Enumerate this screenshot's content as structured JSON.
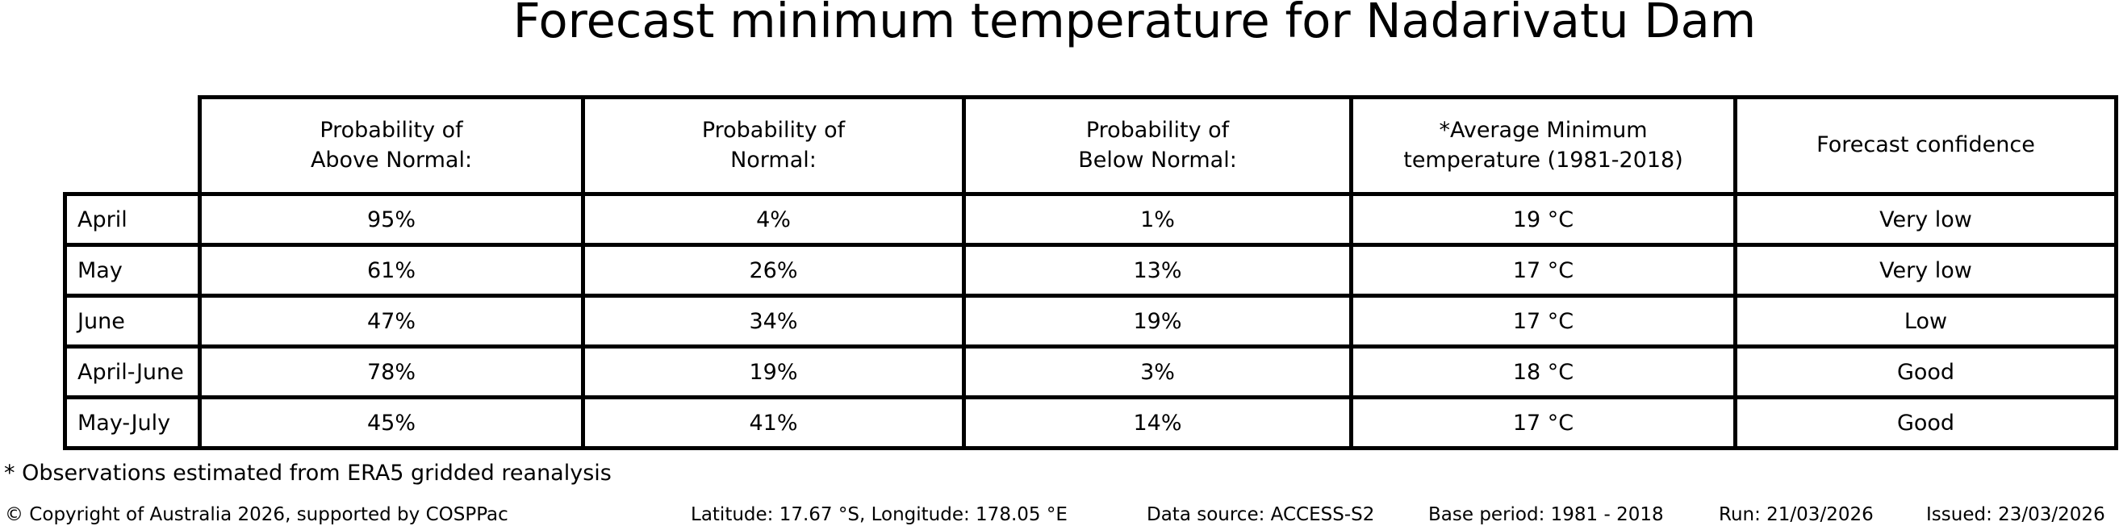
{
  "title": "Forecast minimum temperature for Nadarivatu Dam",
  "chart_data": {
    "type": "table",
    "title": "Forecast minimum temperature for Nadarivatu Dam",
    "columns": [
      "",
      "Probability of\nAbove Normal:",
      "Probability of\nNormal:",
      "Probability of\nBelow Normal:",
      "*Average Minimum\ntemperature (1981-2018)",
      "Forecast confidence"
    ],
    "rows": [
      [
        "April",
        "95%",
        "4%",
        "1%",
        "19 °C",
        "Very low"
      ],
      [
        "May",
        "61%",
        "26%",
        "13%",
        "17 °C",
        "Very low"
      ],
      [
        "June",
        "47%",
        "34%",
        "19%",
        "17 °C",
        "Low"
      ],
      [
        "April-June",
        "78%",
        "19%",
        "3%",
        "18 °C",
        "Good"
      ],
      [
        "May-July",
        "45%",
        "41%",
        "14%",
        "17 °C",
        "Good"
      ]
    ],
    "probabilities_above_normal": [
      95,
      61,
      47,
      78,
      45
    ],
    "probabilities_normal": [
      4,
      26,
      34,
      19,
      41
    ],
    "probabilities_below_normal": [
      1,
      13,
      19,
      3,
      14
    ],
    "average_minimum_temperature_c": [
      19,
      17,
      17,
      18,
      17
    ],
    "forecast_confidence": [
      "Very low",
      "Very low",
      "Low",
      "Good",
      "Good"
    ]
  },
  "footnote": "* Observations estimated from ERA5 gridded reanalysis",
  "footer": {
    "copyright": "© Copyright of Australia 2026, supported by COSPPac",
    "location": "Latitude: 17.67 °S, Longitude: 178.05 °E",
    "data_source": "Data source: ACCESS-S2",
    "base_period": "Base period: 1981 - 2018",
    "run": "Run: 21/03/2026",
    "issued": "Issued: 23/03/2026"
  },
  "colors": {
    "background": "#ffffff",
    "text": "#000000",
    "table_border": "#000000"
  }
}
